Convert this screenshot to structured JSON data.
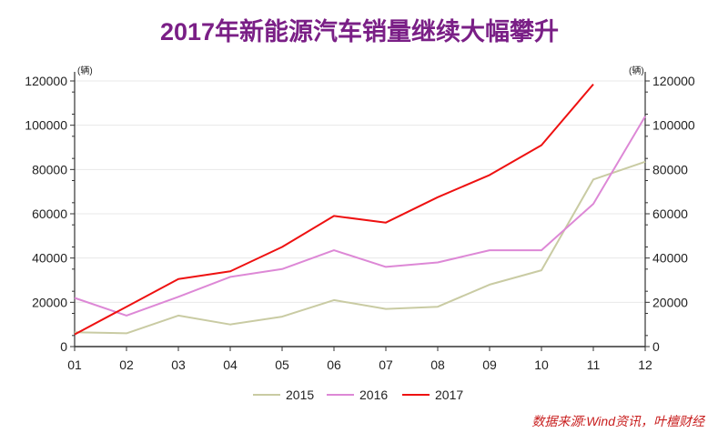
{
  "chart_data": {
    "type": "line",
    "title": "2017年新能源汽车销量继续大幅攀升",
    "y_unit_left": "(辆)",
    "y_unit_right": "(辆)",
    "ylim": [
      0,
      120000
    ],
    "yticks": [
      0,
      20000,
      40000,
      60000,
      80000,
      100000,
      120000
    ],
    "y_tick_labels": [
      "0",
      "20000",
      "40000",
      "60000",
      "80000",
      "100000",
      "120000"
    ],
    "categories": [
      "01",
      "02",
      "03",
      "04",
      "05",
      "06",
      "07",
      "08",
      "09",
      "10",
      "11",
      "12"
    ],
    "grid": true,
    "legend_position": "bottom",
    "series": [
      {
        "name": "2015",
        "color": "#c9cba3",
        "values": [
          6500,
          6000,
          14000,
          10000,
          13500,
          21000,
          17000,
          18000,
          28000,
          34500,
          75500,
          83500
        ]
      },
      {
        "name": "2016",
        "color": "#dd88d6",
        "values": [
          22000,
          14000,
          22500,
          31500,
          35000,
          43500,
          36000,
          38000,
          43500,
          43500,
          64500,
          104000
        ]
      },
      {
        "name": "2017",
        "color": "#ee1111",
        "values": [
          5500,
          18000,
          30500,
          34000,
          45000,
          59000,
          56000,
          67500,
          77500,
          91000,
          118500,
          null
        ]
      }
    ]
  },
  "source_text": "数据来源:Wind资讯，叶檀财经",
  "colors": {
    "title": "#7a1f86",
    "source": "#c81e1e",
    "axis": "#333333",
    "grid": "#e8e8e8"
  }
}
